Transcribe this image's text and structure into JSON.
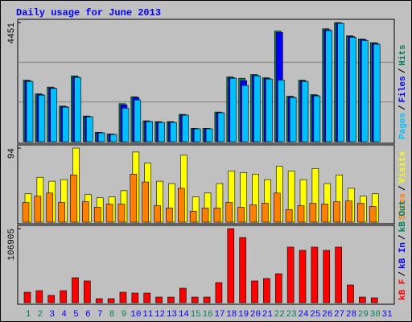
{
  "title": "Daily usage for June 2013",
  "legend_separator": "/",
  "chart_data": [
    {
      "type": "bar",
      "ylim": [
        0,
        4451
      ],
      "yticks": [
        4451
      ],
      "series": [
        {
          "name": "Hits",
          "color": "#00805c",
          "values": [
            2300,
            1790,
            2040,
            1330,
            2460,
            960,
            350,
            290,
            1420,
            1680,
            780,
            750,
            750,
            1020,
            500,
            500,
            1110,
            2420,
            2370,
            2510,
            2390,
            4130,
            1700,
            2300,
            1760,
            4220,
            4451,
            3960,
            3840,
            3700,
            null
          ]
        },
        {
          "name": "Files",
          "color": "#0000ff",
          "values": [
            2270,
            1760,
            2010,
            1310,
            2420,
            940,
            340,
            280,
            1370,
            1650,
            760,
            730,
            730,
            1000,
            490,
            490,
            1090,
            2390,
            2280,
            2480,
            2360,
            4080,
            1670,
            2270,
            1730,
            4180,
            4430,
            3930,
            3810,
            3670,
            null
          ]
        },
        {
          "name": "Pages",
          "color": "#00c0ff",
          "values": [
            2250,
            1740,
            1990,
            1290,
            2400,
            930,
            330,
            270,
            1250,
            1560,
            750,
            720,
            720,
            990,
            480,
            480,
            1080,
            2370,
            2100,
            2460,
            2340,
            2300,
            1650,
            2250,
            1710,
            4150,
            4420,
            3900,
            3780,
            3640,
            null
          ]
        }
      ]
    },
    {
      "type": "bar",
      "ylim": [
        0,
        94
      ],
      "yticks": [
        94
      ],
      "series": [
        {
          "name": "Visits",
          "color": "#ffff00",
          "values": [
            36,
            57,
            52,
            54,
            94,
            35,
            31,
            32,
            40,
            89,
            75,
            52,
            49,
            85,
            32,
            37,
            49,
            65,
            63,
            61,
            54,
            71,
            65,
            54,
            68,
            49,
            60,
            43,
            33,
            36,
            null
          ]
        },
        {
          "name": "Sites",
          "color": "#ff8000",
          "values": [
            25,
            33,
            37,
            25,
            60,
            26,
            19,
            23,
            23,
            61,
            51,
            21,
            18,
            43,
            14,
            18,
            18,
            25,
            19,
            22,
            24,
            37,
            16,
            21,
            24,
            23,
            26,
            27,
            24,
            20,
            null
          ]
        }
      ]
    },
    {
      "type": "bar",
      "ylim": [
        0,
        106905
      ],
      "yticks": [
        106905
      ],
      "categories": [
        "1",
        "2",
        "3",
        "4",
        "5",
        "6",
        "7",
        "8",
        "9",
        "10",
        "11",
        "12",
        "13",
        "14",
        "15",
        "16",
        "17",
        "18",
        "19",
        "20",
        "21",
        "22",
        "23",
        "24",
        "25",
        "26",
        "27",
        "28",
        "29",
        "30",
        "31"
      ],
      "category_colors": [
        "#00805c",
        "#00805c",
        "#0000ff",
        "#0000ff",
        "#0000ff",
        "#0000ff",
        "#0000ff",
        "#00805c",
        "#00805c",
        "#0000ff",
        "#0000ff",
        "#0000ff",
        "#0000ff",
        "#0000ff",
        "#00805c",
        "#00805c",
        "#0000ff",
        "#0000ff",
        "#0000ff",
        "#0000ff",
        "#0000ff",
        "#00805c",
        "#00805c",
        "#0000ff",
        "#0000ff",
        "#0000ff",
        "#0000ff",
        "#0000ff",
        "#00805c",
        "#00805c",
        "#0000ff"
      ],
      "series": [
        {
          "name": "kB F",
          "color": "#ff0000",
          "values": [
            15100,
            17400,
            10500,
            17400,
            36000,
            31400,
            5800,
            5800,
            15100,
            13900,
            13900,
            8100,
            8100,
            20900,
            8100,
            8100,
            29000,
            106905,
            94100,
            31400,
            34900,
            41800,
            80200,
            75500,
            80200,
            75500,
            80200,
            25600,
            8100,
            7000,
            null
          ]
        },
        {
          "name": "kB In",
          "color": "#0000ff"
        },
        {
          "name": "kB Out",
          "color": "#00805c"
        }
      ]
    }
  ]
}
